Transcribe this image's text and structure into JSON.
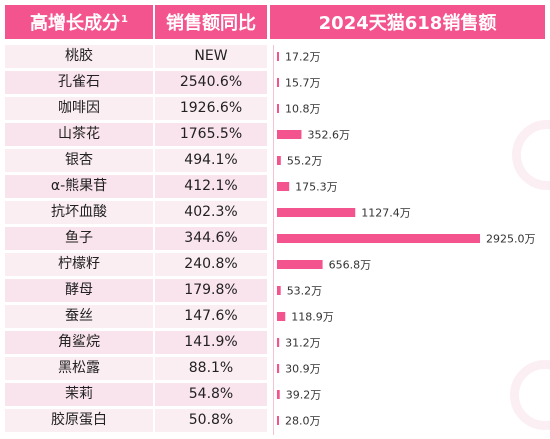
{
  "header": {
    "col1": "高增长成分",
    "col1_sup": "1",
    "col2": "销售额同比",
    "col3": "2024天猫618销售额"
  },
  "colors": {
    "accent": "#f4548d",
    "row_light": "#fbeef3",
    "row_dark": "#f9e3ec"
  },
  "chart_data": {
    "type": "bar",
    "orientation": "horizontal",
    "value_unit": "万",
    "categories": [
      "桃胶",
      "孔雀石",
      "咖啡因",
      "山茶花",
      "银杏",
      "α-熊果苷",
      "抗坏血酸",
      "鱼子",
      "柠檬籽",
      "酵母",
      "蚕丝",
      "角鲨烷",
      "黑松露",
      "茉莉",
      "胶原蛋白"
    ],
    "yoy": [
      "NEW",
      "2540.6%",
      "1926.6%",
      "1765.5%",
      "494.1%",
      "412.1%",
      "402.3%",
      "344.6%",
      "240.8%",
      "179.8%",
      "147.6%",
      "141.9%",
      "88.1%",
      "54.8%",
      "50.8%"
    ],
    "values": [
      17.2,
      15.7,
      10.8,
      352.6,
      55.2,
      175.3,
      1127.4,
      2925.0,
      656.8,
      53.2,
      118.9,
      31.2,
      30.9,
      39.2,
      28.0
    ],
    "value_labels": [
      "17.2万",
      "15.7万",
      "10.8万",
      "352.6万",
      "55.2万",
      "175.3万",
      "1127.4万",
      "2925.0万",
      "656.8万",
      "53.2万",
      "118.9万",
      "31.2万",
      "30.9万",
      "39.2万",
      "28.0万"
    ]
  }
}
